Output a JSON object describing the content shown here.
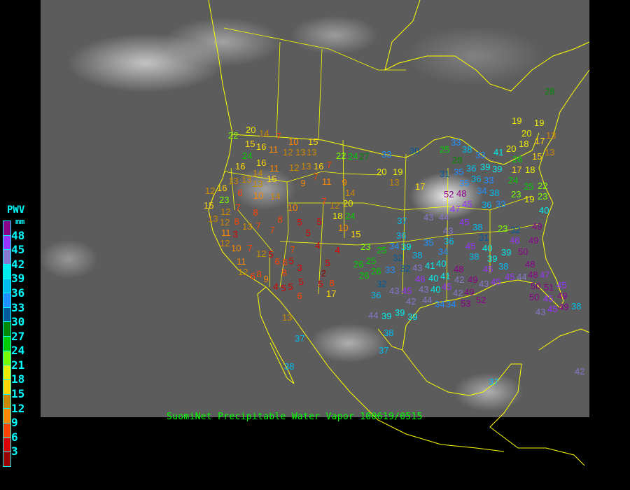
{
  "caption": "SuomiNet Precipitable Water Vapor 100619/0515",
  "legend": {
    "title": "PWV",
    "unit": "mm",
    "ticks": [
      "48",
      "45",
      "42",
      "39",
      "36",
      "33",
      "30",
      "27",
      "24",
      "21",
      "18",
      "15",
      "12",
      "9",
      "6",
      "3"
    ],
    "colors": [
      "#8b008b",
      "#9933ff",
      "#8877cc",
      "#00eeee",
      "#00bbee",
      "#1e90ff",
      "#005a9c",
      "#008800",
      "#00cc00",
      "#77ff00",
      "#eeee00",
      "#ffd700",
      "#cc8800",
      "#ff8800",
      "#ff4400",
      "#dd0000",
      "#990000"
    ]
  },
  "map_style": {
    "background": "#5c5c5c",
    "boundary_color": "#ffff00",
    "label_color": "#00ffff",
    "caption_color": "#00ff00"
  },
  "stations": [
    20,
    14,
    7,
    10,
    15,
    22,
    15,
    16,
    11,
    12,
    13,
    13,
    24,
    22,
    24,
    27,
    16,
    16,
    11,
    12,
    13,
    16,
    7,
    14,
    13,
    15,
    13,
    13,
    7,
    9,
    11,
    9,
    20,
    12,
    16,
    23,
    6,
    10,
    14,
    14,
    20,
    7,
    12,
    10,
    15,
    12,
    7,
    8,
    13,
    8,
    18,
    24,
    8,
    5,
    5,
    12,
    11,
    13,
    3,
    7,
    7,
    5,
    10,
    15,
    12,
    10,
    7,
    12,
    7,
    4,
    4,
    23,
    25,
    5,
    6,
    6,
    5,
    5,
    26,
    25,
    26,
    11,
    3,
    2,
    12,
    6,
    8,
    9,
    8,
    26,
    5,
    5,
    8,
    4,
    5,
    5,
    6,
    17,
    32,
    36,
    33,
    30,
    19,
    13,
    17,
    25,
    33,
    38,
    28,
    33,
    36,
    39,
    31,
    35,
    36,
    35,
    33,
    34,
    39,
    41,
    20,
    26,
    18,
    19,
    20,
    17,
    19,
    13,
    15,
    13,
    17,
    18,
    24,
    25,
    22,
    23,
    19,
    23,
    40,
    38,
    33,
    36,
    48,
    52,
    45,
    47,
    43,
    44,
    45,
    37,
    38,
    43,
    31,
    23,
    32,
    49,
    49,
    46,
    50,
    39,
    36,
    35,
    34,
    45,
    40,
    38,
    39,
    45,
    38,
    36,
    34,
    39,
    32,
    38,
    33,
    32,
    43,
    46,
    41,
    40,
    40,
    41,
    45,
    42,
    48,
    49,
    43,
    45,
    45,
    44,
    48,
    47,
    48,
    50,
    51,
    45,
    50,
    45,
    49,
    49,
    45,
    43,
    38,
    43,
    45,
    43,
    40,
    42,
    44,
    42,
    34,
    34,
    49,
    53,
    52,
    44,
    39,
    39,
    39,
    38,
    37,
    37,
    38,
    13,
    37,
    42,
    28
  ]
}
